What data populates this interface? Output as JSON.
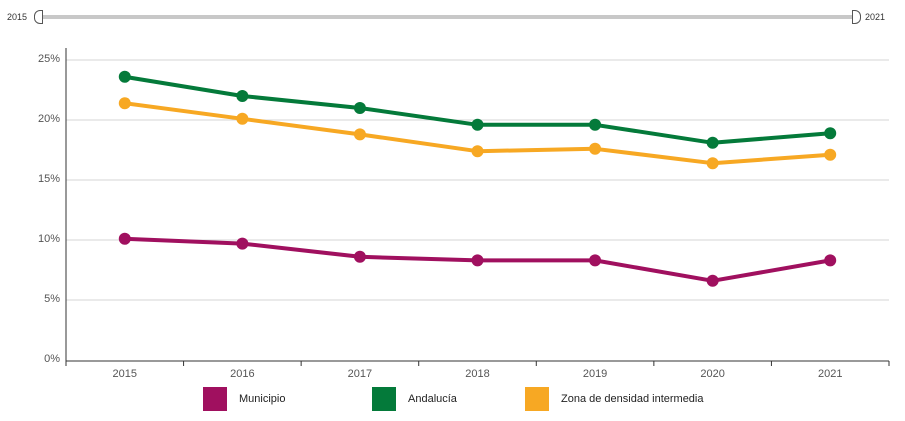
{
  "range": {
    "start_label": "2015",
    "end_label": "2021"
  },
  "chart_data": {
    "type": "line",
    "x": [
      "2015",
      "2016",
      "2017",
      "2018",
      "2019",
      "2020",
      "2021"
    ],
    "y_ticks": [
      "0%",
      "5%",
      "10%",
      "15%",
      "20%",
      "25%"
    ],
    "ylim": [
      0,
      25
    ],
    "grid": true,
    "legend_position": "bottom",
    "series": [
      {
        "name": "Municipio",
        "color": "#a0105f",
        "values": [
          10.1,
          9.7,
          8.6,
          8.3,
          8.3,
          6.6,
          8.3
        ]
      },
      {
        "name": "Andalucía",
        "color": "#047a3a",
        "values": [
          23.6,
          22.0,
          21.0,
          19.6,
          19.6,
          18.1,
          18.9
        ]
      },
      {
        "name": "Zona de densidad intermedia",
        "color": "#f7a823",
        "values": [
          21.4,
          20.1,
          18.8,
          17.4,
          17.6,
          16.4,
          17.1
        ]
      }
    ]
  }
}
